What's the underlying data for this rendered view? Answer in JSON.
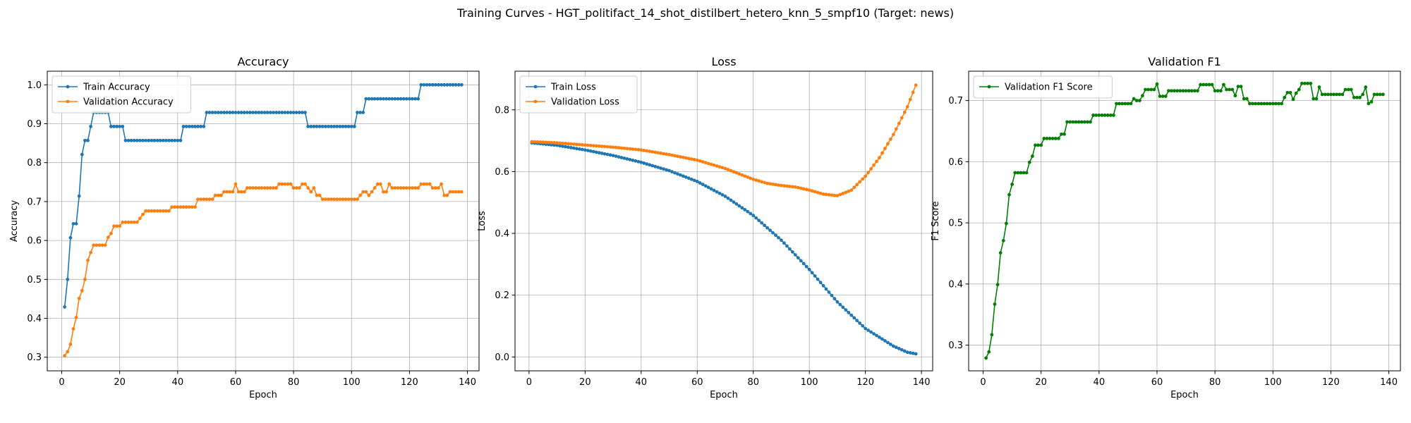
{
  "figure_title": "Training Curves - HGT_politifact_14_shot_distilbert_hetero_knn_5_smpf10 (Target: news)",
  "colors": {
    "blue": "#1f77b4",
    "orange": "#ff7f0e",
    "green": "#008000"
  },
  "chart_data": [
    {
      "type": "line",
      "title": "Accuracy",
      "xlabel": "Epoch",
      "ylabel": "Accuracy",
      "xlim": [
        -5,
        144
      ],
      "ylim": [
        0.265,
        1.035
      ],
      "xticks": [
        0,
        20,
        40,
        60,
        80,
        100,
        120,
        140
      ],
      "yticks": [
        0.3,
        0.4,
        0.5,
        0.6,
        0.7,
        0.8,
        0.9,
        1.0
      ],
      "ytick_labels": [
        "0.3",
        "0.4",
        "0.5",
        "0.6",
        "0.7",
        "0.8",
        "0.9",
        "1.0"
      ],
      "grid": true,
      "legend_position": "upper left",
      "series": [
        {
          "name": "Train Accuracy",
          "color": "#1f77b4",
          "segments": [
            [
              1,
              0.429
            ],
            [
              2,
              0.5
            ],
            [
              3,
              0.607
            ],
            [
              4,
              0.643
            ],
            [
              5,
              0.643
            ],
            [
              6,
              0.714
            ],
            [
              7,
              0.821
            ],
            [
              8,
              0.857
            ],
            [
              9,
              0.857
            ],
            [
              10,
              0.893
            ],
            [
              11,
              0.929
            ],
            [
              16,
              0.929
            ],
            [
              17,
              0.893
            ],
            [
              21,
              0.893
            ],
            [
              22,
              0.857
            ],
            [
              41,
              0.857
            ],
            [
              42,
              0.893
            ],
            [
              49,
              0.893
            ],
            [
              50,
              0.929
            ],
            [
              84,
              0.929
            ],
            [
              85,
              0.893
            ],
            [
              101,
              0.893
            ],
            [
              102,
              0.929
            ],
            [
              104,
              0.929
            ],
            [
              105,
              0.964
            ],
            [
              123,
              0.964
            ],
            [
              124,
              1.0
            ],
            [
              138,
              1.0
            ]
          ]
        },
        {
          "name": "Validation Accuracy",
          "color": "#ff7f0e",
          "segments": [
            [
              1,
              0.304
            ],
            [
              2,
              0.314
            ],
            [
              3,
              0.333
            ],
            [
              4,
              0.373
            ],
            [
              5,
              0.402
            ],
            [
              6,
              0.451
            ],
            [
              7,
              0.471
            ],
            [
              8,
              0.5
            ],
            [
              9,
              0.549
            ],
            [
              10,
              0.569
            ],
            [
              11,
              0.588
            ],
            [
              15,
              0.588
            ],
            [
              16,
              0.608
            ],
            [
              17,
              0.618
            ],
            [
              18,
              0.637
            ],
            [
              20,
              0.637
            ],
            [
              21,
              0.647
            ],
            [
              26,
              0.647
            ],
            [
              27,
              0.657
            ],
            [
              28,
              0.667
            ],
            [
              29,
              0.676
            ],
            [
              37,
              0.676
            ],
            [
              38,
              0.686
            ],
            [
              46,
              0.686
            ],
            [
              47,
              0.706
            ],
            [
              52,
              0.706
            ],
            [
              53,
              0.716
            ],
            [
              55,
              0.716
            ],
            [
              56,
              0.725
            ],
            [
              59,
              0.725
            ],
            [
              60,
              0.745
            ],
            [
              61,
              0.725
            ],
            [
              63,
              0.725
            ],
            [
              64,
              0.735
            ],
            [
              74,
              0.735
            ],
            [
              75,
              0.745
            ],
            [
              79,
              0.745
            ],
            [
              80,
              0.735
            ],
            [
              82,
              0.735
            ],
            [
              83,
              0.745
            ],
            [
              84,
              0.745
            ],
            [
              85,
              0.735
            ],
            [
              86,
              0.725
            ],
            [
              87,
              0.735
            ],
            [
              88,
              0.716
            ],
            [
              89,
              0.716
            ],
            [
              90,
              0.706
            ],
            [
              102,
              0.706
            ],
            [
              103,
              0.716
            ],
            [
              104,
              0.725
            ],
            [
              105,
              0.725
            ],
            [
              106,
              0.716
            ],
            [
              107,
              0.725
            ],
            [
              108,
              0.735
            ],
            [
              109,
              0.745
            ],
            [
              110,
              0.745
            ],
            [
              111,
              0.725
            ],
            [
              112,
              0.725
            ],
            [
              113,
              0.745
            ],
            [
              114,
              0.735
            ],
            [
              123,
              0.735
            ],
            [
              124,
              0.745
            ],
            [
              127,
              0.745
            ],
            [
              128,
              0.735
            ],
            [
              130,
              0.735
            ],
            [
              131,
              0.745
            ],
            [
              132,
              0.716
            ],
            [
              133,
              0.716
            ],
            [
              134,
              0.725
            ],
            [
              138,
              0.725
            ]
          ]
        }
      ]
    },
    {
      "type": "line",
      "title": "Loss",
      "xlabel": "Epoch",
      "ylabel": "Loss",
      "xlim": [
        -5,
        144
      ],
      "ylim": [
        -0.045,
        0.925
      ],
      "xticks": [
        0,
        20,
        40,
        60,
        80,
        100,
        120,
        140
      ],
      "yticks": [
        0.0,
        0.2,
        0.4,
        0.6,
        0.8
      ],
      "ytick_labels": [
        "0.0",
        "0.2",
        "0.4",
        "0.6",
        "0.8"
      ],
      "grid": true,
      "legend_position": "upper left",
      "series": [
        {
          "name": "Train Loss",
          "color": "#1f77b4",
          "segments": [
            [
              1,
              0.693
            ],
            [
              10,
              0.685
            ],
            [
              20,
              0.67
            ],
            [
              30,
              0.652
            ],
            [
              40,
              0.63
            ],
            [
              50,
              0.603
            ],
            [
              60,
              0.568
            ],
            [
              70,
              0.52
            ],
            [
              80,
              0.458
            ],
            [
              90,
              0.378
            ],
            [
              100,
              0.283
            ],
            [
              110,
              0.178
            ],
            [
              120,
              0.092
            ],
            [
              130,
              0.035
            ],
            [
              135,
              0.015
            ],
            [
              138,
              0.01
            ]
          ]
        },
        {
          "name": "Validation Loss",
          "color": "#ff7f0e",
          "segments": [
            [
              1,
              0.697
            ],
            [
              10,
              0.693
            ],
            [
              20,
              0.686
            ],
            [
              30,
              0.679
            ],
            [
              40,
              0.67
            ],
            [
              50,
              0.655
            ],
            [
              60,
              0.637
            ],
            [
              70,
              0.61
            ],
            [
              80,
              0.575
            ],
            [
              85,
              0.562
            ],
            [
              90,
              0.555
            ],
            [
              95,
              0.55
            ],
            [
              100,
              0.54
            ],
            [
              105,
              0.527
            ],
            [
              110,
              0.522
            ],
            [
              115,
              0.54
            ],
            [
              120,
              0.585
            ],
            [
              125,
              0.645
            ],
            [
              130,
              0.72
            ],
            [
              135,
              0.81
            ],
            [
              138,
              0.88
            ]
          ]
        }
      ]
    },
    {
      "type": "line",
      "title": "Validation F1",
      "xlabel": "Epoch",
      "ylabel": "F1 Score",
      "xlim": [
        -5,
        144
      ],
      "ylim": [
        0.258,
        0.748
      ],
      "xticks": [
        0,
        20,
        40,
        60,
        80,
        100,
        120,
        140
      ],
      "yticks": [
        0.3,
        0.4,
        0.5,
        0.6,
        0.7
      ],
      "ytick_labels": [
        "0.3",
        "0.4",
        "0.5",
        "0.6",
        "0.7"
      ],
      "grid": true,
      "legend_position": "upper left",
      "series": [
        {
          "name": "Validation F1 Score",
          "color": "#008000",
          "segments": [
            [
              1,
              0.279
            ],
            [
              2,
              0.289
            ],
            [
              3,
              0.317
            ],
            [
              4,
              0.367
            ],
            [
              5,
              0.399
            ],
            [
              6,
              0.451
            ],
            [
              7,
              0.471
            ],
            [
              8,
              0.499
            ],
            [
              9,
              0.546
            ],
            [
              10,
              0.563
            ],
            [
              11,
              0.582
            ],
            [
              15,
              0.582
            ],
            [
              16,
              0.599
            ],
            [
              17,
              0.609
            ],
            [
              18,
              0.627
            ],
            [
              20,
              0.627
            ],
            [
              21,
              0.638
            ],
            [
              26,
              0.638
            ],
            [
              27,
              0.645
            ],
            [
              28,
              0.645
            ],
            [
              29,
              0.665
            ],
            [
              37,
              0.665
            ],
            [
              38,
              0.676
            ],
            [
              45,
              0.676
            ],
            [
              46,
              0.695
            ],
            [
              51,
              0.695
            ],
            [
              52,
              0.703
            ],
            [
              53,
              0.7
            ],
            [
              54,
              0.7
            ],
            [
              55,
              0.708
            ],
            [
              56,
              0.718
            ],
            [
              59,
              0.718
            ],
            [
              60,
              0.727
            ],
            [
              61,
              0.707
            ],
            [
              63,
              0.707
            ],
            [
              64,
              0.716
            ],
            [
              74,
              0.716
            ],
            [
              75,
              0.726
            ],
            [
              79,
              0.726
            ],
            [
              80,
              0.716
            ],
            [
              82,
              0.716
            ],
            [
              83,
              0.726
            ],
            [
              84,
              0.718
            ],
            [
              86,
              0.718
            ],
            [
              87,
              0.708
            ],
            [
              88,
              0.723
            ],
            [
              89,
              0.723
            ],
            [
              90,
              0.703
            ],
            [
              91,
              0.703
            ],
            [
              92,
              0.695
            ],
            [
              103,
              0.695
            ],
            [
              104,
              0.705
            ],
            [
              105,
              0.713
            ],
            [
              106,
              0.713
            ],
            [
              107,
              0.702
            ],
            [
              108,
              0.712
            ],
            [
              109,
              0.718
            ],
            [
              110,
              0.728
            ],
            [
              113,
              0.728
            ],
            [
              114,
              0.703
            ],
            [
              115,
              0.703
            ],
            [
              116,
              0.722
            ],
            [
              117,
              0.71
            ],
            [
              124,
              0.71
            ],
            [
              125,
              0.718
            ],
            [
              127,
              0.718
            ],
            [
              128,
              0.705
            ],
            [
              130,
              0.705
            ],
            [
              131,
              0.71
            ],
            [
              132,
              0.722
            ],
            [
              133,
              0.695
            ],
            [
              134,
              0.698
            ],
            [
              135,
              0.71
            ],
            [
              138,
              0.71
            ]
          ]
        }
      ]
    }
  ]
}
